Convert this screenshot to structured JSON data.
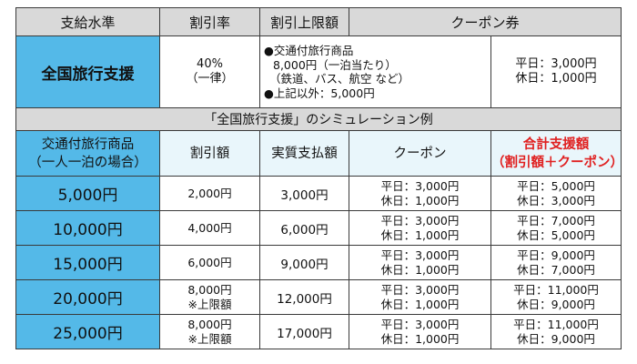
{
  "header": {
    "col1": "支給水準",
    "col2": "割引率",
    "col3": "割引上限額",
    "col4": "クーポン券"
  },
  "program": {
    "name": "全国旅行支援",
    "rate_line1": "40%",
    "rate_line2": "（一律）",
    "limit_lines": [
      "●交通付旅行商品",
      "8,000円（一泊当たり）",
      "（鉄道、バス、航空 など）",
      "●上記以外：5,000円"
    ],
    "coupon_lines": [
      "平日：3,000円",
      "休日：1,000円"
    ]
  },
  "simulation": {
    "title": "「全国旅行支援」のシミュレーション例",
    "headers": {
      "col1_line1": "交通付旅行商品",
      "col1_line2": "（一人一泊の場合）",
      "col2": "割引額",
      "col3": "実質支払額",
      "col4": "クーポン",
      "col5_line1": "合計支援額",
      "col5_line2": "（割引額＋クーポン）"
    },
    "rows": [
      {
        "price": "5,000円",
        "discount_line1": "2,000円",
        "discount_line2": "",
        "payment": "3,000円",
        "coupon_line1": "平日：3,000円",
        "coupon_line2": "休日：1,000円",
        "total_line1": "平日：5,000円",
        "total_line2": "休日：3,000円"
      },
      {
        "price": "10,000円",
        "discount_line1": "4,000円",
        "discount_line2": "",
        "payment": "6,000円",
        "coupon_line1": "平日：3,000円",
        "coupon_line2": "休日：1,000円",
        "total_line1": "平日：7,000円",
        "total_line2": "休日：5,000円"
      },
      {
        "price": "15,000円",
        "discount_line1": "6,000円",
        "discount_line2": "",
        "payment": "9,000円",
        "coupon_line1": "平日：3,000円",
        "coupon_line2": "休日：1,000円",
        "total_line1": "平日：9,000円",
        "total_line2": "休日：7,000円"
      },
      {
        "price": "20,000円",
        "discount_line1": "8,000円",
        "discount_line2": "※上限額",
        "payment": "12,000円",
        "coupon_line1": "平日：3,000円",
        "coupon_line2": "休日：1,000円",
        "total_line1": "平日：11,000円",
        "total_line2": "休日：9,000円"
      },
      {
        "price": "25,000円",
        "discount_line1": "8,000円",
        "discount_line2": "※上限額",
        "payment": "17,000円",
        "coupon_line1": "平日：3,000円",
        "coupon_line2": "休日：1,000円",
        "total_line1": "平日：11,000円",
        "total_line2": "休日：9,000円"
      }
    ]
  },
  "colors": {
    "blue": "#54b9e8",
    "gray": "#d9d9d9",
    "red": "#e02020"
  }
}
